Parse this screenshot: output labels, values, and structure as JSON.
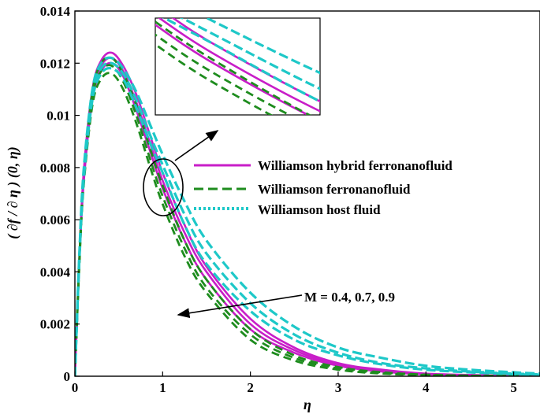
{
  "chart_data": {
    "type": "line",
    "title": "",
    "xlabel": "η",
    "ylabel": "( ∂f / ∂ η ) (0, η)",
    "xlim": [
      0,
      5.3
    ],
    "ylim": [
      0,
      0.014
    ],
    "xticks": [
      "0",
      "1",
      "2",
      "3",
      "4",
      "5"
    ],
    "yticks": [
      "0",
      "0.002",
      "0.004",
      "0.006",
      "0.008",
      "0.01",
      "0.012",
      "0.014"
    ],
    "grid": false,
    "legend_position": "right",
    "annotation": "M = 0.4, 0.7, 0.9",
    "inset": {
      "present": true,
      "description_of_region": "zoom of ellipse around η≈1"
    },
    "series": [
      {
        "name": "Williamson hybrid ferronanofluid",
        "color": "#c81ec8",
        "dash": "solid",
        "curves": [
          {
            "M": 0.4,
            "x": [
              0,
              0.05,
              0.1,
              0.2,
              0.3,
              0.42,
              0.55,
              0.7,
              0.85,
              1.0,
              1.25,
              1.5,
              2.0,
              2.5,
              3.0,
              3.5,
              4.0,
              4.5,
              5.0,
              5.3
            ],
            "y": [
              0,
              0.0045,
              0.0078,
              0.011,
              0.0121,
              0.0124,
              0.0119,
              0.0108,
              0.0093,
              0.0078,
              0.0058,
              0.0042,
              0.0022,
              0.0011,
              0.0005,
              0.00025,
              0.0001,
              5e-05,
              2e-05,
              1e-05
            ]
          },
          {
            "M": 0.7,
            "x": [
              0,
              0.05,
              0.1,
              0.2,
              0.3,
              0.42,
              0.55,
              0.7,
              0.85,
              1.0,
              1.25,
              1.5,
              2.0,
              2.5,
              3.0,
              3.5,
              4.0,
              4.5,
              5.0,
              5.3
            ],
            "y": [
              0,
              0.0044,
              0.0076,
              0.0108,
              0.0119,
              0.0122,
              0.0117,
              0.0105,
              0.009,
              0.0075,
              0.0055,
              0.004,
              0.002,
              0.001,
              0.00045,
              0.0002,
              8e-05,
              4e-05,
              2e-05,
              1e-05
            ]
          },
          {
            "M": 0.9,
            "x": [
              0,
              0.05,
              0.1,
              0.2,
              0.3,
              0.42,
              0.55,
              0.7,
              0.85,
              1.0,
              1.25,
              1.5,
              2.0,
              2.5,
              3.0,
              3.5,
              4.0,
              4.5,
              5.0,
              5.3
            ],
            "y": [
              0,
              0.0043,
              0.0074,
              0.0106,
              0.0117,
              0.012,
              0.0115,
              0.0102,
              0.0087,
              0.0072,
              0.0052,
              0.0037,
              0.0018,
              0.0009,
              0.0004,
              0.00018,
              7e-05,
              3e-05,
              1e-05,
              1e-05
            ]
          }
        ]
      },
      {
        "name": "Williamson ferronanofluid",
        "color": "#1e8c1e",
        "dash": "dashed",
        "curves": [
          {
            "M": 0.4,
            "x": [
              0,
              0.05,
              0.1,
              0.2,
              0.3,
              0.42,
              0.55,
              0.7,
              0.85,
              1.0,
              1.25,
              1.5,
              2.0,
              2.5,
              3.0,
              3.5,
              4.0,
              4.5,
              5.0,
              5.3
            ],
            "y": [
              0,
              0.0044,
              0.0077,
              0.0109,
              0.012,
              0.0122,
              0.0116,
              0.0104,
              0.0088,
              0.0073,
              0.0052,
              0.0037,
              0.0018,
              0.0008,
              0.00035,
              0.00015,
              6e-05,
              2e-05,
              1e-05,
              0.0
            ]
          },
          {
            "M": 0.7,
            "x": [
              0,
              0.05,
              0.1,
              0.2,
              0.3,
              0.42,
              0.55,
              0.7,
              0.85,
              1.0,
              1.25,
              1.5,
              2.0,
              2.5,
              3.0,
              3.5,
              4.0,
              4.5,
              5.0,
              5.3
            ],
            "y": [
              0,
              0.0043,
              0.0075,
              0.0107,
              0.0117,
              0.0119,
              0.0113,
              0.01,
              0.0084,
              0.0069,
              0.0049,
              0.0034,
              0.0016,
              0.0007,
              0.0003,
              0.00012,
              5e-05,
              2e-05,
              1e-05,
              0.0
            ]
          },
          {
            "M": 0.9,
            "x": [
              0,
              0.05,
              0.1,
              0.2,
              0.3,
              0.42,
              0.55,
              0.7,
              0.85,
              1.0,
              1.25,
              1.5,
              2.0,
              2.5,
              3.0,
              3.5,
              4.0,
              4.5,
              5.0,
              5.3
            ],
            "y": [
              0,
              0.0042,
              0.0073,
              0.0104,
              0.0114,
              0.0116,
              0.011,
              0.0097,
              0.0081,
              0.0066,
              0.0046,
              0.0032,
              0.0014,
              0.0006,
              0.00025,
              0.0001,
              4e-05,
              1e-05,
              0.0,
              0.0
            ]
          }
        ]
      },
      {
        "name": "Williamson host fluid",
        "color": "#1ec8c8",
        "dash": "dashed",
        "curves": [
          {
            "M": 0.4,
            "x": [
              0,
              0.05,
              0.1,
              0.2,
              0.3,
              0.42,
              0.55,
              0.7,
              0.85,
              1.0,
              1.25,
              1.5,
              2.0,
              2.5,
              3.0,
              3.5,
              4.0,
              4.5,
              5.0,
              5.3
            ],
            "y": [
              0,
              0.0046,
              0.0079,
              0.011,
              0.012,
              0.0122,
              0.0118,
              0.0109,
              0.0097,
              0.0085,
              0.0067,
              0.0052,
              0.0032,
              0.0019,
              0.0011,
              0.0007,
              0.0004,
              0.00025,
              0.00015,
              0.0001
            ]
          },
          {
            "M": 0.7,
            "x": [
              0,
              0.05,
              0.1,
              0.2,
              0.3,
              0.42,
              0.55,
              0.7,
              0.85,
              1.0,
              1.25,
              1.5,
              2.0,
              2.5,
              3.0,
              3.5,
              4.0,
              4.5,
              5.0,
              5.3
            ],
            "y": [
              0,
              0.0045,
              0.0077,
              0.0108,
              0.0118,
              0.012,
              0.0116,
              0.0106,
              0.0093,
              0.0081,
              0.0062,
              0.0047,
              0.0028,
              0.0016,
              0.0009,
              0.0005,
              0.0003,
              0.00018,
              0.0001,
              7e-05
            ]
          },
          {
            "M": 0.9,
            "x": [
              0,
              0.05,
              0.1,
              0.2,
              0.3,
              0.42,
              0.55,
              0.7,
              0.85,
              1.0,
              1.25,
              1.5,
              2.0,
              2.5,
              3.0,
              3.5,
              4.0,
              4.5,
              5.0,
              5.3
            ],
            "y": [
              0,
              0.0044,
              0.0075,
              0.0106,
              0.0116,
              0.0118,
              0.0114,
              0.0103,
              0.009,
              0.0078,
              0.0058,
              0.0043,
              0.0025,
              0.0014,
              0.0008,
              0.00045,
              0.00025,
              0.00015,
              8e-05,
              5e-05
            ]
          }
        ]
      }
    ]
  }
}
